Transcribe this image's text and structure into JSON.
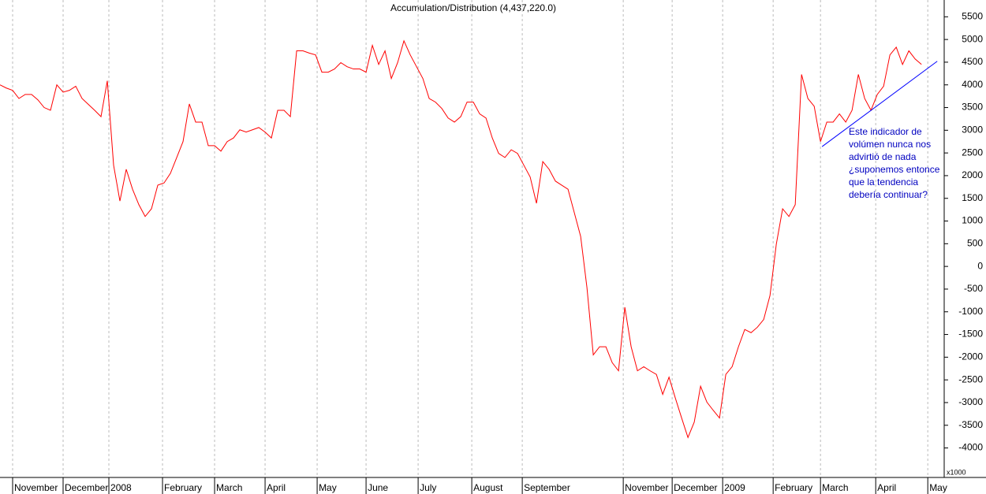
{
  "chart_data": {
    "type": "line",
    "title": "Accumulation/Distribution (4,437,220.0)",
    "y_unit_label": "x1000",
    "annotation": [
      "Este indicador de",
      "volúmen nunca nos",
      "advirtió de nada",
      "¿suponemos entonce",
      "que la tendencia",
      "debería continuar?"
    ],
    "series": [
      {
        "color": "#ff0000",
        "values": [
          4000,
          3930,
          3880,
          3700,
          3790,
          3790,
          3670,
          3500,
          3440,
          4000,
          3840,
          3880,
          3970,
          3700,
          3570,
          3440,
          3300,
          4090,
          2230,
          1440,
          2140,
          1700,
          1360,
          1100,
          1270,
          1790,
          1840,
          2050,
          2400,
          2750,
          3580,
          3180,
          3180,
          2660,
          2660,
          2540,
          2750,
          2830,
          3010,
          2960,
          3010,
          3060,
          2960,
          2830,
          3440,
          3440,
          3300,
          4750,
          4750,
          4700,
          4660,
          4280,
          4280,
          4350,
          4490,
          4400,
          4350,
          4350,
          4280,
          4870,
          4450,
          4750,
          4140,
          4490,
          4970,
          4660,
          4400,
          4140,
          3700,
          3620,
          3480,
          3270,
          3180,
          3300,
          3620,
          3620,
          3360,
          3270,
          2830,
          2490,
          2400,
          2570,
          2490,
          2230,
          1970,
          1390,
          2310,
          2140,
          1880,
          1790,
          1700,
          1180,
          660,
          -470,
          -1950,
          -1770,
          -1770,
          -2120,
          -2300,
          -900,
          -1770,
          -2300,
          -2210,
          -2300,
          -2380,
          -2820,
          -2440,
          -2900,
          -3340,
          -3770,
          -3430,
          -2640,
          -2990,
          -3170,
          -3340,
          -2380,
          -2210,
          -1770,
          -1390,
          -1460,
          -1340,
          -1170,
          -640,
          490,
          1270,
          1100,
          1360,
          4230,
          3700,
          3530,
          2750,
          3180,
          3180,
          3360,
          3180,
          3440,
          4230,
          3700,
          3440,
          3790,
          3970,
          4660,
          4830,
          4450,
          4750,
          4570,
          4450
        ]
      }
    ],
    "trendline": {
      "color": "#0000ff",
      "x": [
        130.25,
        148.5
      ],
      "values": [
        2640,
        4520
      ]
    },
    "xlim": [
      0,
      149.6
    ],
    "xticks": [
      {
        "value": 2,
        "label": "November"
      },
      {
        "value": 10,
        "label": "December"
      },
      {
        "value": 17.25,
        "label": "2008"
      },
      {
        "value": 25.75,
        "label": "February"
      },
      {
        "value": 34,
        "label": "March"
      },
      {
        "value": 42,
        "label": "April"
      },
      {
        "value": 50.25,
        "label": "May"
      },
      {
        "value": 58,
        "label": "June"
      },
      {
        "value": 66.25,
        "label": "July"
      },
      {
        "value": 74.75,
        "label": "August"
      },
      {
        "value": 82.75,
        "label": "September"
      },
      {
        "value": 98.75,
        "label": "November"
      },
      {
        "value": 106.5,
        "label": "December"
      },
      {
        "value": 114.5,
        "label": "2009"
      },
      {
        "value": 122.5,
        "label": "February"
      },
      {
        "value": 130,
        "label": "March"
      },
      {
        "value": 138.75,
        "label": "April"
      },
      {
        "value": 147,
        "label": "May"
      }
    ],
    "ylim": [
      -4650,
      5870
    ],
    "yticks": [
      5500,
      5000,
      4500,
      4000,
      3500,
      3000,
      2500,
      2000,
      1500,
      1000,
      500,
      0,
      -500,
      -1000,
      -1500,
      -2000,
      -2500,
      -3000,
      -3500,
      -4000
    ],
    "grid": true
  }
}
